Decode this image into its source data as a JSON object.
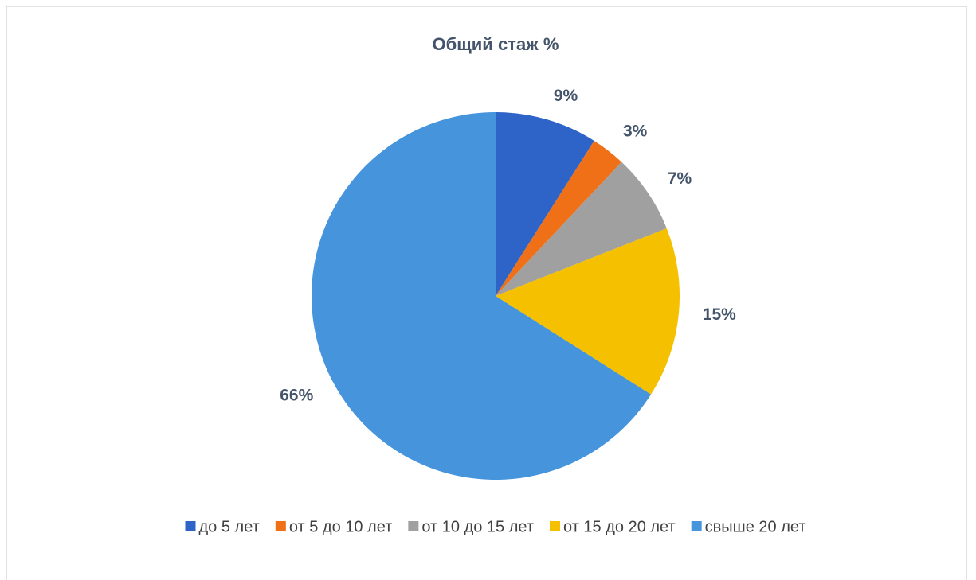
{
  "chart_data": {
    "type": "pie",
    "title": "Общий стаж %",
    "categories": [
      "до 5 лет",
      "от 5 до 10 лет",
      "от 10 до 15 лет",
      "от 15 до 20 лет",
      "свыше 20 лет"
    ],
    "values": [
      9,
      3,
      7,
      15,
      66
    ],
    "value_labels": [
      "9%",
      "3%",
      "7%",
      "15%",
      "66%"
    ],
    "colors": [
      "#2e64c8",
      "#f07018",
      "#a0a0a0",
      "#f5c000",
      "#4594dc"
    ],
    "legend": "bottom"
  }
}
